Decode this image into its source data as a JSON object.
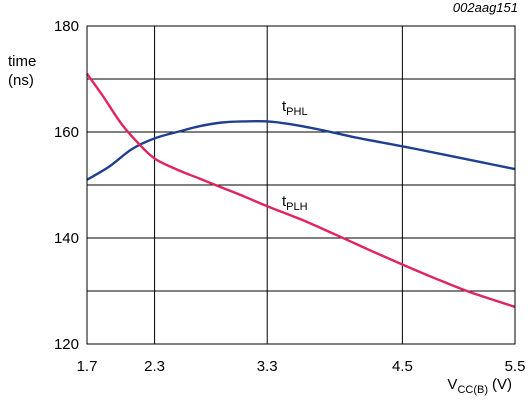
{
  "figure_code": "002aag151",
  "chart_data": {
    "type": "line",
    "xlabel": {
      "main": "V",
      "sub": "CC(B)",
      "unit": "(V)"
    },
    "ylabel": [
      "time",
      "(ns)"
    ],
    "xlim": [
      1.7,
      5.5
    ],
    "ylim": [
      120,
      180
    ],
    "x_ticks": [
      1.7,
      2.3,
      3.3,
      4.5,
      5.5
    ],
    "x_tick_labels": [
      "1.7",
      "2.3",
      "3.3",
      "4.5",
      "5.5"
    ],
    "y_ticks": [
      120,
      140,
      160,
      180
    ],
    "y_tick_labels": [
      "120",
      "140",
      "160",
      "180"
    ],
    "y_gridlines": [
      130,
      140,
      150,
      160,
      170
    ],
    "grid": true,
    "series": [
      {
        "name": {
          "main": "t",
          "sub": "PHL"
        },
        "color": "#1f3f8f",
        "x": [
          1.7,
          1.9,
          2.1,
          2.3,
          2.5,
          2.7,
          2.9,
          3.1,
          3.3,
          3.5,
          3.8,
          4.1,
          4.5,
          4.9,
          5.2,
          5.5
        ],
        "y": [
          151,
          153.5,
          156.8,
          158.8,
          160,
          161.1,
          161.8,
          162,
          162,
          161.5,
          160.3,
          158.9,
          157.3,
          155.6,
          154.3,
          153
        ]
      },
      {
        "name": {
          "main": "t",
          "sub": "PLH"
        },
        "color": "#e0245e",
        "x": [
          1.7,
          1.85,
          2.0,
          2.15,
          2.3,
          2.5,
          2.7,
          2.9,
          3.1,
          3.3,
          3.6,
          3.9,
          4.2,
          4.5,
          4.8,
          5.1,
          5.5
        ],
        "y": [
          171,
          166.5,
          161.7,
          158,
          155,
          152.9,
          151.2,
          149.5,
          147.8,
          146,
          143.5,
          140.7,
          137.8,
          135,
          132.3,
          129.8,
          127
        ]
      }
    ]
  }
}
